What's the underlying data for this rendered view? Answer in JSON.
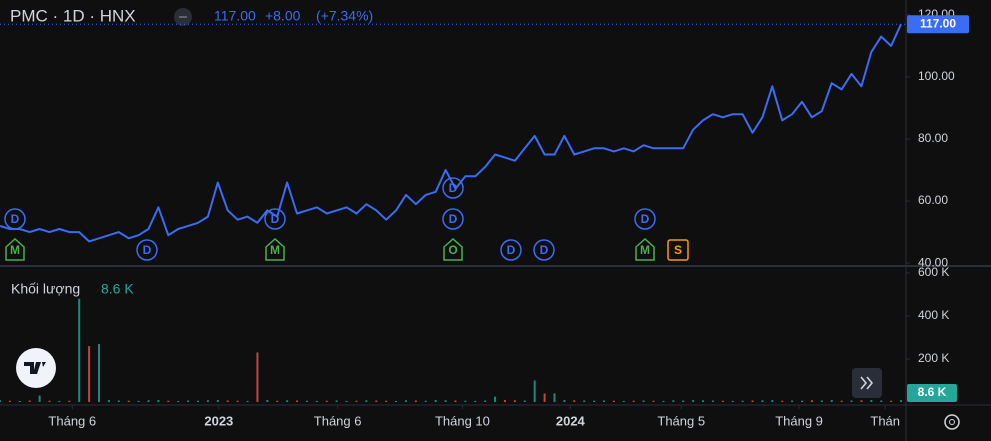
{
  "header": {
    "title": "PMC · 1D · HNX",
    "price": "117.00",
    "change": "+8.00",
    "change_pct": "(+7.34%)"
  },
  "chart_data": {
    "type": "line",
    "series": [
      {
        "name": "PMC",
        "color": "#3a6cf4",
        "values": [
          52,
          51,
          51,
          50,
          51,
          50,
          51,
          50,
          50,
          47,
          48,
          49,
          50,
          48,
          49,
          51,
          58,
          49,
          51,
          52,
          53,
          55,
          66,
          57,
          54,
          55,
          53,
          57,
          55,
          66,
          56,
          57,
          58,
          56,
          57,
          58,
          56,
          59,
          57,
          54,
          57,
          62,
          59,
          62,
          63,
          70,
          64,
          68,
          68,
          71,
          75,
          74,
          73,
          77,
          81,
          75,
          75,
          81,
          75,
          76,
          77,
          77,
          76,
          77,
          76,
          78,
          77,
          77,
          77,
          77,
          83,
          86,
          88,
          87,
          88,
          88,
          82,
          87,
          97,
          86,
          88,
          92,
          87,
          89,
          98,
          96,
          101,
          97,
          108,
          113,
          110,
          117
        ],
        "value_labels": {
          "91": "117.00"
        }
      }
    ],
    "ylim": [
      39.4,
      124.8
    ],
    "yticks": [
      {
        "value": 40,
        "label": "40.00"
      },
      {
        "value": 60,
        "label": "60.00"
      },
      {
        "value": 80,
        "label": "80.00"
      },
      {
        "value": 100,
        "label": "100.00"
      },
      {
        "value": 120,
        "label": "120.00"
      }
    ],
    "xlim": [
      0,
      91.5
    ],
    "xticks": [
      {
        "value": 7.3,
        "label": "Tháng 6"
      },
      {
        "value": 22.1,
        "label": "2023"
      },
      {
        "value": 34.1,
        "label": "Tháng 6"
      },
      {
        "value": 46.7,
        "label": "Tháng 10"
      },
      {
        "value": 57.6,
        "label": "2024"
      },
      {
        "value": 68.8,
        "label": "Tháng 5"
      },
      {
        "value": 80.7,
        "label": "Tháng 9"
      },
      {
        "value": 89.4,
        "label": "Thán"
      }
    ],
    "volume": {
      "name": "Khối lượng",
      "last_label": "8.6 K",
      "up_color": "#26a69a",
      "down_color": "#ef5350",
      "values": [
        8000,
        6000,
        5000,
        7000,
        30000,
        6000,
        5000,
        6000,
        480000,
        260000,
        270000,
        9000,
        7000,
        6000,
        5000,
        8000,
        9000,
        6000,
        5000,
        7000,
        6000,
        8000,
        9000,
        7000,
        6000,
        5000,
        230000,
        9000,
        6000,
        8000,
        7000,
        6000,
        5000,
        6000,
        7000,
        5000,
        6000,
        8000,
        7000,
        6000,
        5000,
        8000,
        7000,
        6000,
        9000,
        8000,
        7000,
        6000,
        5000,
        7000,
        25000,
        9000,
        8000,
        7000,
        100000,
        40000,
        40000,
        9000,
        8000,
        7000,
        6000,
        7000,
        6000,
        5000,
        6000,
        7000,
        6000,
        5000,
        8000,
        7000,
        9000,
        8000,
        7000,
        6000,
        5000,
        6000,
        7000,
        8000,
        9000,
        6000,
        7000,
        6000,
        8000,
        7000,
        9000,
        6000,
        7000,
        8000,
        9000,
        7000,
        6000,
        8600
      ],
      "ylim": [
        0,
        623000
      ],
      "yticks": [
        {
          "value": 200000,
          "label": "200 K"
        },
        {
          "value": 400000,
          "label": "400 K"
        },
        {
          "value": 600000,
          "label": "600 K"
        }
      ]
    },
    "events": [
      "D",
      "M",
      "D",
      "D",
      "M",
      "D",
      "D",
      "O",
      "D",
      "D",
      "D",
      "M",
      "S"
    ]
  }
}
